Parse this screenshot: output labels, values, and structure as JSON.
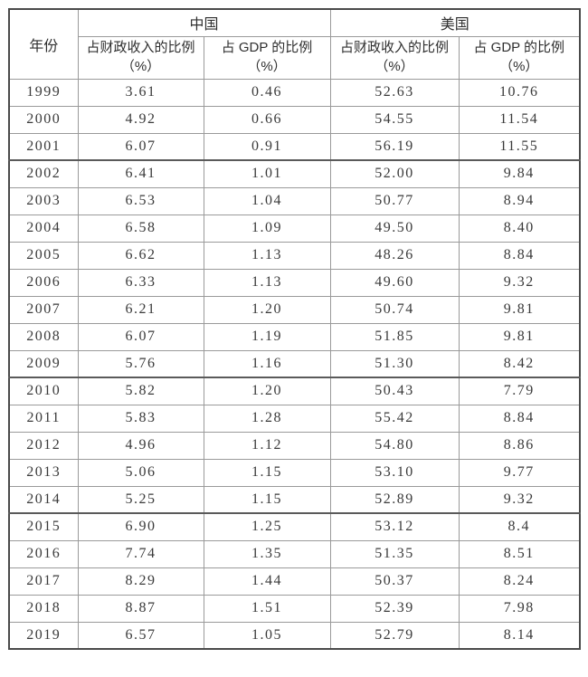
{
  "table": {
    "year_header": "年份",
    "groups": [
      {
        "label": "中国",
        "columns": [
          {
            "line1": "占财政收入的比例",
            "line2": "（%）"
          },
          {
            "line1": "占 GDP 的比例",
            "line2": "（%）"
          }
        ]
      },
      {
        "label": "美国",
        "columns": [
          {
            "line1": "占财政收入的比例",
            "line2": "（%）"
          },
          {
            "line1": "占 GDP 的比例",
            "line2": "（%）"
          }
        ]
      }
    ],
    "rows": [
      {
        "year": "1999",
        "cn_fiscal": "3.61",
        "cn_gdp": "0.46",
        "us_fiscal": "52.63",
        "us_gdp": "10.76"
      },
      {
        "year": "2000",
        "cn_fiscal": "4.92",
        "cn_gdp": "0.66",
        "us_fiscal": "54.55",
        "us_gdp": "11.54"
      },
      {
        "year": "2001",
        "cn_fiscal": "6.07",
        "cn_gdp": "0.91",
        "us_fiscal": "56.19",
        "us_gdp": "11.55"
      },
      {
        "year": "2002",
        "cn_fiscal": "6.41",
        "cn_gdp": "1.01",
        "us_fiscal": "52.00",
        "us_gdp": "9.84"
      },
      {
        "year": "2003",
        "cn_fiscal": "6.53",
        "cn_gdp": "1.04",
        "us_fiscal": "50.77",
        "us_gdp": "8.94"
      },
      {
        "year": "2004",
        "cn_fiscal": "6.58",
        "cn_gdp": "1.09",
        "us_fiscal": "49.50",
        "us_gdp": "8.40"
      },
      {
        "year": "2005",
        "cn_fiscal": "6.62",
        "cn_gdp": "1.13",
        "us_fiscal": "48.26",
        "us_gdp": "8.84"
      },
      {
        "year": "2006",
        "cn_fiscal": "6.33",
        "cn_gdp": "1.13",
        "us_fiscal": "49.60",
        "us_gdp": "9.32"
      },
      {
        "year": "2007",
        "cn_fiscal": "6.21",
        "cn_gdp": "1.20",
        "us_fiscal": "50.74",
        "us_gdp": "9.81"
      },
      {
        "year": "2008",
        "cn_fiscal": "6.07",
        "cn_gdp": "1.19",
        "us_fiscal": "51.85",
        "us_gdp": "9.81"
      },
      {
        "year": "2009",
        "cn_fiscal": "5.76",
        "cn_gdp": "1.16",
        "us_fiscal": "51.30",
        "us_gdp": "8.42"
      },
      {
        "year": "2010",
        "cn_fiscal": "5.82",
        "cn_gdp": "1.20",
        "us_fiscal": "50.43",
        "us_gdp": "7.79"
      },
      {
        "year": "2011",
        "cn_fiscal": "5.83",
        "cn_gdp": "1.28",
        "us_fiscal": "55.42",
        "us_gdp": "8.84"
      },
      {
        "year": "2012",
        "cn_fiscal": "4.96",
        "cn_gdp": "1.12",
        "us_fiscal": "54.80",
        "us_gdp": "8.86"
      },
      {
        "year": "2013",
        "cn_fiscal": "5.06",
        "cn_gdp": "1.15",
        "us_fiscal": "53.10",
        "us_gdp": "9.77"
      },
      {
        "year": "2014",
        "cn_fiscal": "5.25",
        "cn_gdp": "1.15",
        "us_fiscal": "52.89",
        "us_gdp": "9.32"
      },
      {
        "year": "2015",
        "cn_fiscal": "6.90",
        "cn_gdp": "1.25",
        "us_fiscal": "53.12",
        "us_gdp": "8.4"
      },
      {
        "year": "2016",
        "cn_fiscal": "7.74",
        "cn_gdp": "1.35",
        "us_fiscal": "51.35",
        "us_gdp": "8.51"
      },
      {
        "year": "2017",
        "cn_fiscal": "8.29",
        "cn_gdp": "1.44",
        "us_fiscal": "50.37",
        "us_gdp": "8.24"
      },
      {
        "year": "2018",
        "cn_fiscal": "8.87",
        "cn_gdp": "1.51",
        "us_fiscal": "52.39",
        "us_gdp": "7.98"
      },
      {
        "year": "2019",
        "cn_fiscal": "6.57",
        "cn_gdp": "1.05",
        "us_fiscal": "52.79",
        "us_gdp": "8.14"
      }
    ]
  },
  "colors": {
    "background": "#ffffff",
    "outer_border": "#4a4a4a",
    "inner_border": "#9a9a9a",
    "group_rule": "#5a5a5a",
    "text": "#333333"
  },
  "chart_data": {
    "type": "table",
    "columns": [
      "年份",
      "中国 占财政收入的比例（%）",
      "中国 占 GDP 的比例（%）",
      "美国 占财政收入的比例（%）",
      "美国 占 GDP 的比例（%）"
    ],
    "rows": [
      [
        "1999",
        3.61,
        0.46,
        52.63,
        10.76
      ],
      [
        "2000",
        4.92,
        0.66,
        54.55,
        11.54
      ],
      [
        "2001",
        6.07,
        0.91,
        56.19,
        11.55
      ],
      [
        "2002",
        6.41,
        1.01,
        52.0,
        9.84
      ],
      [
        "2003",
        6.53,
        1.04,
        50.77,
        8.94
      ],
      [
        "2004",
        6.58,
        1.09,
        49.5,
        8.4
      ],
      [
        "2005",
        6.62,
        1.13,
        48.26,
        8.84
      ],
      [
        "2006",
        6.33,
        1.13,
        49.6,
        9.32
      ],
      [
        "2007",
        6.21,
        1.2,
        50.74,
        9.81
      ],
      [
        "2008",
        6.07,
        1.19,
        51.85,
        9.81
      ],
      [
        "2009",
        5.76,
        1.16,
        51.3,
        8.42
      ],
      [
        "2010",
        5.82,
        1.2,
        50.43,
        7.79
      ],
      [
        "2011",
        5.83,
        1.28,
        55.42,
        8.84
      ],
      [
        "2012",
        4.96,
        1.12,
        54.8,
        8.86
      ],
      [
        "2013",
        5.06,
        1.15,
        53.1,
        9.77
      ],
      [
        "2014",
        5.25,
        1.15,
        52.89,
        9.32
      ],
      [
        "2015",
        6.9,
        1.25,
        53.12,
        8.4
      ],
      [
        "2016",
        7.74,
        1.35,
        51.35,
        8.51
      ],
      [
        "2017",
        8.29,
        1.44,
        50.37,
        8.24
      ],
      [
        "2018",
        8.87,
        1.51,
        52.39,
        7.98
      ],
      [
        "2019",
        6.57,
        1.05,
        52.79,
        8.14
      ]
    ]
  }
}
